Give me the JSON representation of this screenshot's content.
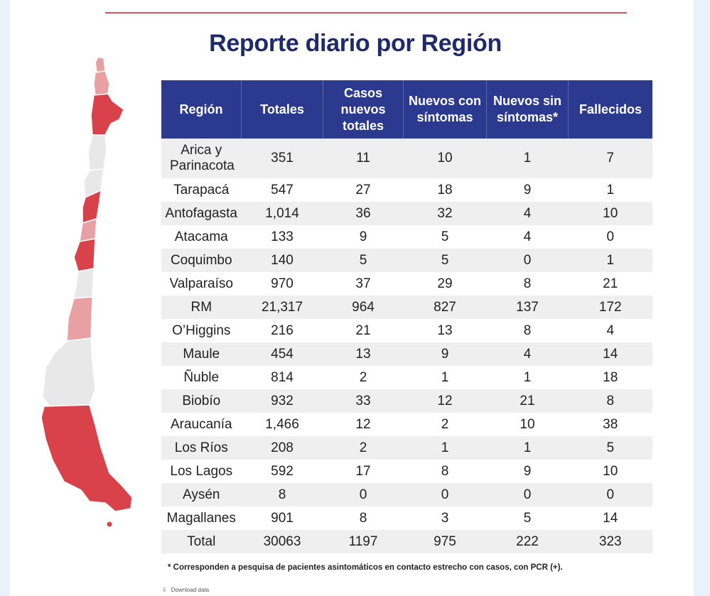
{
  "header": {
    "title": "Reporte diario por Región"
  },
  "colors": {
    "header_bg": "#2b3a8f",
    "map_dark": "#d9424a",
    "map_mid": "#e8a0a3",
    "map_light": "#e8e8e8"
  },
  "table": {
    "columns": [
      "Región",
      "Totales",
      "Casos nuevos totales",
      "Nuevos con síntomas",
      "Nuevos sin síntomas*",
      "Fallecidos"
    ],
    "rows": [
      [
        "Arica y Parinacota",
        "351",
        "11",
        "10",
        "1",
        "7"
      ],
      [
        "Tarapacá",
        "547",
        "27",
        "18",
        "9",
        "1"
      ],
      [
        "Antofagasta",
        "1,014",
        "36",
        "32",
        "4",
        "10"
      ],
      [
        "Atacama",
        "133",
        "9",
        "5",
        "4",
        "0"
      ],
      [
        "Coquimbo",
        "140",
        "5",
        "5",
        "0",
        "1"
      ],
      [
        "Valparaíso",
        "970",
        "37",
        "29",
        "8",
        "21"
      ],
      [
        "RM",
        "21,317",
        "964",
        "827",
        "137",
        "172"
      ],
      [
        "O’Higgins",
        "216",
        "21",
        "13",
        "8",
        "4"
      ],
      [
        "Maule",
        "454",
        "13",
        "9",
        "4",
        "14"
      ],
      [
        "Ñuble",
        "814",
        "2",
        "1",
        "1",
        "18"
      ],
      [
        "Biobío",
        "932",
        "33",
        "12",
        "21",
        "8"
      ],
      [
        "Araucanía",
        "1,466",
        "12",
        "2",
        "10",
        "38"
      ],
      [
        "Los Ríos",
        "208",
        "2",
        "1",
        "1",
        "5"
      ],
      [
        "Los Lagos",
        "592",
        "17",
        "8",
        "9",
        "10"
      ],
      [
        "Aysén",
        "8",
        "0",
        "0",
        "0",
        "0"
      ],
      [
        "Magallanes",
        "901",
        "8",
        "3",
        "5",
        "14"
      ],
      [
        "Total",
        "30063",
        "1197",
        "975",
        "222",
        "323"
      ]
    ]
  },
  "footnote": "* Corresponden a pesquisa de pacientes asintomáticos en contacto estrecho con casos, con PCR (+).",
  "download": {
    "icon": "download-icon",
    "label": "Download data"
  }
}
